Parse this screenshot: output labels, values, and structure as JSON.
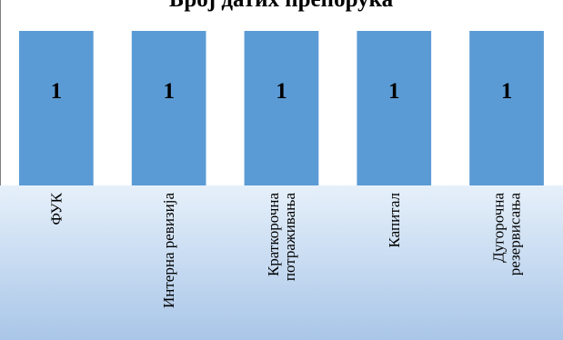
{
  "chart_data": {
    "type": "bar",
    "title": "Број датих препорука",
    "categories": [
      [
        "ФУК"
      ],
      [
        "Интерна ревизија"
      ],
      [
        "Краткорочна",
        "потраживања"
      ],
      [
        "Капитал"
      ],
      [
        "Дугорочна",
        "резервисања"
      ]
    ],
    "values": [
      1,
      1,
      1,
      1,
      1
    ],
    "data_labels": [
      "1",
      "1",
      "1",
      "1",
      "1"
    ],
    "ylim": [
      0,
      1.2
    ],
    "grid": false,
    "legend": "none",
    "colors": {
      "bar": "#5b9bd5",
      "label_band_top": "#e6f0fa",
      "label_band_bottom": "#a9c6e8",
      "text": "#000000"
    }
  }
}
